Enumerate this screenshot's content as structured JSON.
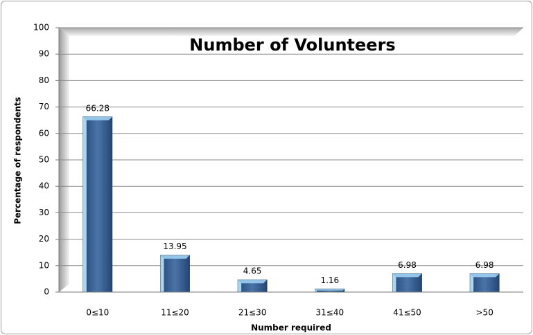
{
  "chart_data": {
    "type": "bar",
    "title": "Number of Volunteers",
    "x_label": "Number required",
    "y_label": "Percentage of respondents",
    "categories": [
      "0≤10",
      "11≤20",
      "21≤30",
      "31≤40",
      "41≤50",
      ">50"
    ],
    "values": [
      66.28,
      13.95,
      4.65,
      1.16,
      6.98,
      6.98
    ],
    "color": "#3a6296",
    "ylim": [
      0,
      100
    ],
    "yticks": [
      0,
      10,
      20,
      30,
      40,
      50,
      60,
      70,
      80,
      90,
      100
    ],
    "grid": true
  }
}
